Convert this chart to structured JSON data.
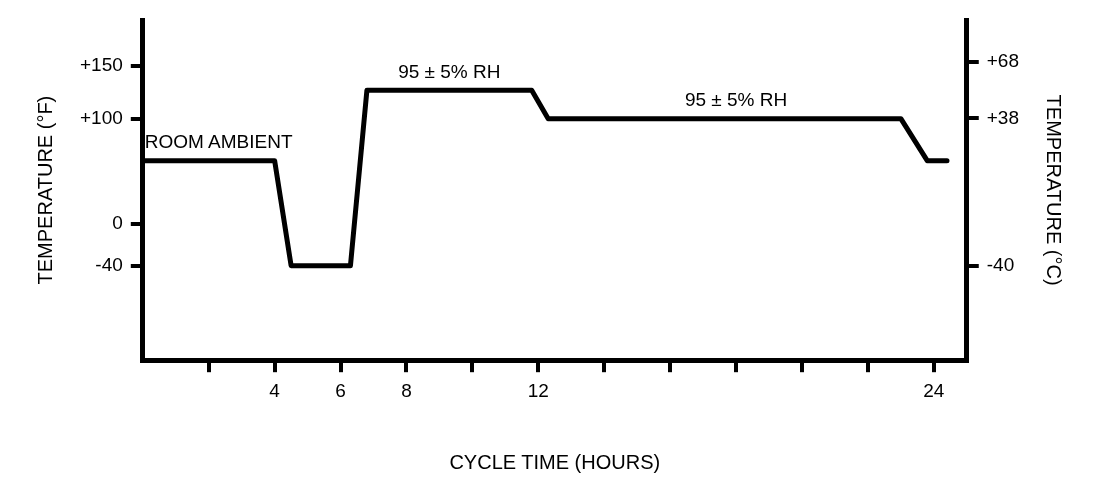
{
  "chart_data": {
    "type": "line",
    "xlabel": "CYCLE TIME (HOURS)",
    "ylabel": "TEMPERATURE (°F)",
    "y2label": "TEMPERATURE (°C)",
    "x": [
      0,
      4,
      4.5,
      6.3,
      6.8,
      11.8,
      12.3,
      23,
      23.8,
      24.4
    ],
    "series": [
      {
        "color": "#000000",
        "values": [
          60,
          60,
          -40,
          -40,
          127,
          127,
          100,
          100,
          60,
          60
        ]
      }
    ],
    "xlim": [
      0,
      25
    ],
    "xticks": [
      {
        "value": 2,
        "label": null
      },
      4,
      6,
      8,
      {
        "value": 10,
        "label": null
      },
      12,
      {
        "value": 14,
        "label": null
      },
      {
        "value": 16,
        "label": null
      },
      {
        "value": 18,
        "label": null
      },
      {
        "value": 20,
        "label": null
      },
      {
        "value": 22,
        "label": null
      },
      24
    ],
    "ylim": [
      -130,
      194
    ],
    "yticks": [
      {
        "value": -40,
        "label": "-40"
      },
      {
        "value": 0,
        "label": "0"
      },
      {
        "value": 100,
        "label": "+100"
      },
      {
        "value": 150,
        "label": "+150"
      }
    ],
    "y2lim": [
      -90,
      90
    ],
    "y2ticks": [
      {
        "value": -40,
        "label": "-40"
      },
      {
        "value": 38,
        "label": "+38"
      },
      {
        "value": 68,
        "label": "+68"
      }
    ],
    "annotations": [
      {
        "text": "ROOM AMBIENT",
        "x": 2.3,
        "y": 60
      },
      {
        "text": "95 ± 5% RH",
        "x": 9.3,
        "y": 127
      },
      {
        "text": "95 ± 5% RH",
        "x": 18,
        "y": 100
      }
    ],
    "grid": false,
    "legend": false,
    "marker": "none",
    "line_style": "solid"
  }
}
